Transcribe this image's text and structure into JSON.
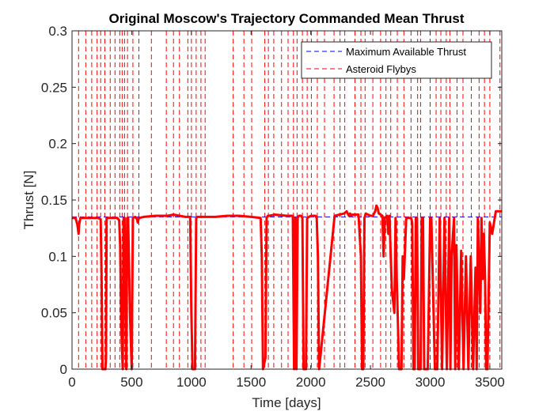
{
  "chart_data": {
    "type": "line",
    "title": "Original Moscow's Trajectory Commanded Mean Thrust",
    "xlabel": "Time [days]",
    "ylabel": "Thrust [N]",
    "xlim": [
      0,
      3600
    ],
    "ylim": [
      0,
      0.3
    ],
    "xticks": [
      0,
      500,
      1000,
      1500,
      2000,
      2500,
      3000,
      3500
    ],
    "yticks": [
      0,
      0.05,
      0.1,
      0.15,
      0.2,
      0.25,
      0.3
    ],
    "xtick_labels": [
      "0",
      "500",
      "1000",
      "1500",
      "2000",
      "2500",
      "3000",
      "3500"
    ],
    "ytick_labels": [
      "0",
      "0.05",
      "0.1",
      "0.15",
      "0.2",
      "0.25",
      "0.3"
    ],
    "grid": false,
    "legend_position": "top-right",
    "series": [
      {
        "name": "",
        "style": "solid",
        "color": "#ff0000",
        "x": [
          0,
          30,
          45,
          55,
          60,
          70,
          220,
          240,
          248,
          255,
          262,
          270,
          280,
          285,
          290,
          380,
          395,
          403,
          412,
          418,
          425,
          432,
          440,
          448,
          455,
          462,
          470,
          485,
          500,
          510,
          530,
          545,
          550,
          560,
          600,
          700,
          800,
          850,
          900,
          950,
          990,
          1000,
          1010,
          1020,
          1030,
          1040,
          1050,
          1100,
          1200,
          1300,
          1400,
          1500,
          1580,
          1590,
          1600,
          1620,
          1630,
          1640,
          1650,
          1700,
          1800,
          1850,
          1860,
          1870,
          1880,
          1890,
          1900,
          1920,
          1930,
          1940,
          1950,
          1960,
          1970,
          2000,
          2040,
          2050,
          2060,
          2070,
          2080,
          2200,
          2280,
          2300,
          2310,
          2320,
          2330,
          2340,
          2350,
          2400,
          2420,
          2430,
          2440,
          2450,
          2460,
          2500,
          2520,
          2540,
          2550,
          2560,
          2570,
          2600,
          2610,
          2620,
          2640,
          2650,
          2660,
          2670,
          2680,
          2700,
          2710,
          2720,
          2740,
          2760,
          2770,
          2780,
          2800,
          2840,
          2850,
          2860,
          2870,
          2880,
          2890,
          2900,
          2920,
          2930,
          2940,
          2950,
          2960,
          2980,
          3000,
          3010,
          3040,
          3060,
          3080,
          3100,
          3120,
          3140,
          3160,
          3170,
          3180,
          3200,
          3210,
          3220,
          3240,
          3260,
          3280,
          3300,
          3320,
          3340,
          3360,
          3380,
          3390,
          3400,
          3420,
          3430,
          3440,
          3450,
          3460,
          3470,
          3480,
          3500,
          3520,
          3550,
          3580,
          3600
        ],
        "y": [
          0.134,
          0.134,
          0.128,
          0.12,
          0.128,
          0.134,
          0.134,
          0.133,
          0.08,
          0.0,
          0.0,
          0.0,
          0.0,
          0.01,
          0.134,
          0.134,
          0.132,
          0.11,
          0.05,
          0.02,
          0.0,
          0.134,
          0.134,
          0.05,
          0.0,
          0.134,
          0.134,
          0.05,
          0.0,
          0.134,
          0.135,
          0.133,
          0.13,
          0.134,
          0.135,
          0.136,
          0.136,
          0.137,
          0.136,
          0.135,
          0.135,
          0.05,
          0.0,
          0.0,
          0.0,
          0.134,
          0.135,
          0.135,
          0.135,
          0.136,
          0.136,
          0.135,
          0.134,
          0.1,
          0.0,
          0.01,
          0.134,
          0.136,
          0.136,
          0.137,
          0.136,
          0.136,
          0.0,
          0.134,
          0.0,
          0.134,
          0.136,
          0.136,
          0.134,
          0.0,
          0.0,
          0.0,
          0.134,
          0.136,
          0.136,
          0.134,
          0.1,
          0.0,
          0.01,
          0.136,
          0.138,
          0.14,
          0.138,
          0.136,
          0.138,
          0.136,
          0.137,
          0.137,
          0.1,
          0.0,
          0.0,
          0.134,
          0.138,
          0.136,
          0.136,
          0.14,
          0.145,
          0.143,
          0.138,
          0.136,
          0.1,
          0.134,
          0.136,
          0.12,
          0.136,
          0.1,
          0.07,
          0.05,
          0.134,
          0.08,
          0.0,
          0.0,
          0.1,
          0.08,
          0.134,
          0.134,
          0.13,
          0.0,
          0.0,
          0.134,
          0.134,
          0.0,
          0.0,
          0.134,
          0.134,
          0.0,
          0.0,
          0.0,
          0.134,
          0.134,
          0.0,
          0.0,
          0.134,
          0.0,
          0.134,
          0.0,
          0.134,
          0.0,
          0.1,
          0.134,
          0.0,
          0.11,
          0.0,
          0.105,
          0.0,
          0.1,
          0.0,
          0.1,
          0.0,
          0.09,
          0.0,
          0.134,
          0.05,
          0.134,
          0.08,
          0.12,
          0.08,
          0.0,
          0.0,
          0.13,
          0.12,
          0.14,
          0.14,
          0.14
        ]
      }
    ],
    "reference_series": [
      {
        "name": "Maximum Available Thrust",
        "style": "dashed",
        "color": "#0000ff",
        "y_constant": 0.135
      },
      {
        "name": "Asteroid Flybys",
        "style": "dashed",
        "color": "#ff0000",
        "vertical_lines_x": [
          55,
          115,
          165,
          210,
          240,
          275,
          320,
          360,
          400,
          420,
          440,
          465,
          510,
          560,
          665,
          790,
          850,
          900,
          970,
          1000,
          1040,
          1080,
          1115,
          1350,
          1440,
          1505,
          1615,
          1645,
          1690,
          1755,
          1810,
          1855,
          1885,
          1930,
          1970,
          2005,
          2055,
          2115,
          2195,
          2245,
          2285,
          2370,
          2420,
          2455,
          2520,
          2585,
          2630,
          2670,
          2725,
          2780,
          2840,
          2895,
          2920,
          3000,
          3050,
          3090,
          3135,
          3165,
          3225,
          3275,
          3345,
          3410,
          3455,
          3500,
          3585
        ]
      }
    ]
  }
}
